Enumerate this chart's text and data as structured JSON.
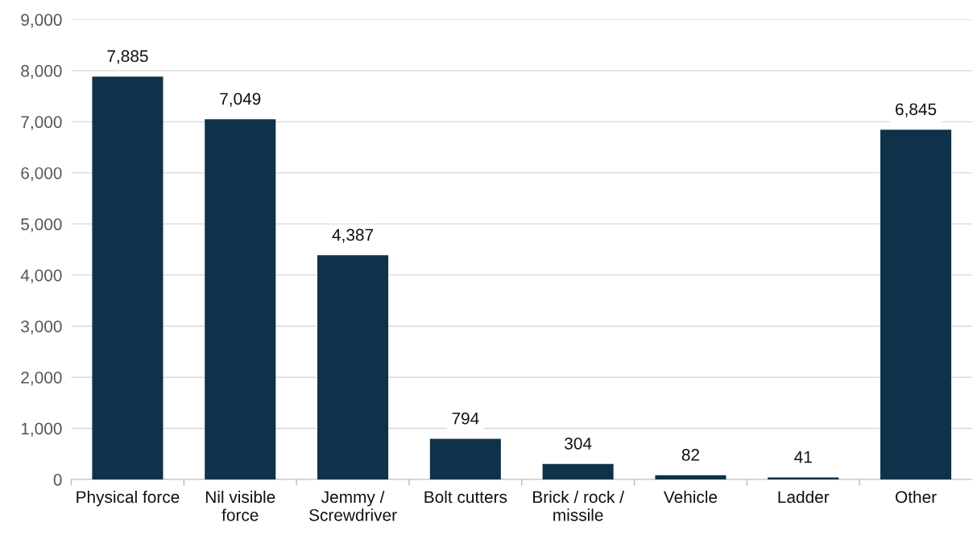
{
  "chart_data": {
    "type": "bar",
    "categories": [
      "Physical force",
      "Nil visible\nforce",
      "Jemmy /\nScrewdriver",
      "Bolt cutters",
      "Brick / rock /\nmissile",
      "Vehicle",
      "Ladder",
      "Other"
    ],
    "values": [
      7885,
      7049,
      4387,
      794,
      304,
      82,
      41,
      6845
    ],
    "color": "#0e3249",
    "ylim": [
      0,
      9000
    ],
    "yticks": [
      {
        "value": 0,
        "label": "0"
      },
      {
        "value": 1000,
        "label": "1,000"
      },
      {
        "value": 2000,
        "label": "2,000"
      },
      {
        "value": 3000,
        "label": "3,000"
      },
      {
        "value": 4000,
        "label": "4,000"
      },
      {
        "value": 5000,
        "label": "5,000"
      },
      {
        "value": 6000,
        "label": "6,000"
      },
      {
        "value": 7000,
        "label": "7,000"
      },
      {
        "value": 8000,
        "label": "8,000"
      },
      {
        "value": 9000,
        "label": "9,000"
      }
    ],
    "grid": "y",
    "legend": false,
    "value_labels": [
      "7,885",
      "7,049",
      "4,387",
      "794",
      "304",
      "82",
      "41",
      "6,845"
    ]
  }
}
